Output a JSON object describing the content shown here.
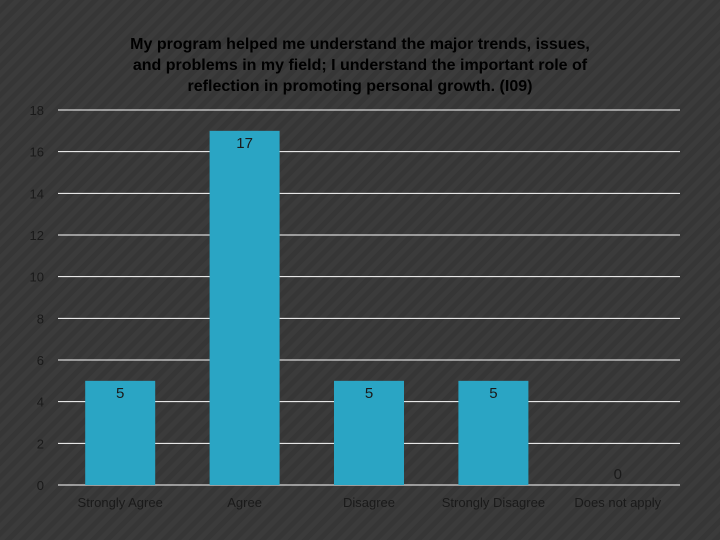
{
  "chart_data": {
    "type": "bar",
    "title_lines": [
      "My program helped me understand the major trends, issues,",
      "and problems in my field;  I understand the important role of",
      "reflection in promoting personal growth. (I09)"
    ],
    "categories": [
      "Strongly Agree",
      "Agree",
      "Disagree",
      "Strongly Disagree",
      "Does not apply"
    ],
    "values": [
      5,
      17,
      5,
      5,
      0
    ],
    "data_labels": [
      "5",
      "17",
      "5",
      "5",
      "0"
    ],
    "ylim": [
      0,
      18
    ],
    "yticks": [
      "0",
      "2",
      "4",
      "6",
      "8",
      "10",
      "12",
      "14",
      "16",
      "18"
    ],
    "xlabel": "",
    "ylabel": "",
    "grid": true,
    "legend": "none"
  },
  "colors": {
    "bar": "#2aa5c4",
    "grid": "#ffffff",
    "background": "#363636",
    "stripe": "#3c3c3c"
  }
}
